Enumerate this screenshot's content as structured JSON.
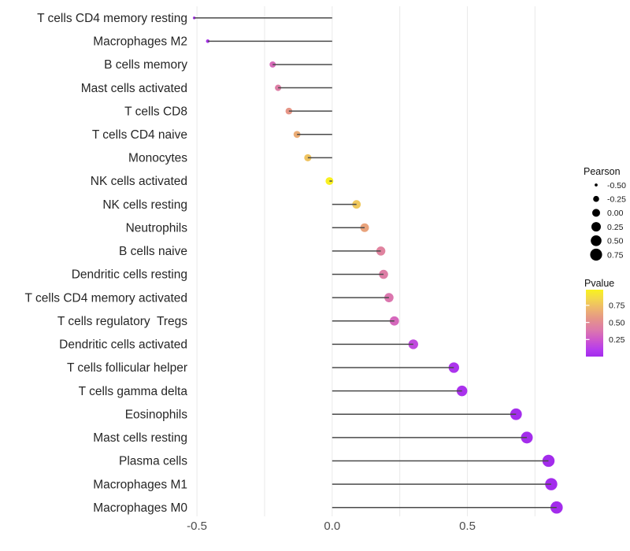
{
  "window": {
    "title": "Immune cell correlation lollipop chart"
  },
  "colors": {
    "background": "#ffffff",
    "gridline": "#ebebeb",
    "stick": "#4a4a4a",
    "axis_text": "#4d4d4d",
    "label_text": "#262626",
    "legend_dot": "#000000"
  },
  "chart_data": {
    "type": "lollipop",
    "title": "",
    "xlabel": "",
    "ylabel": "",
    "grid": "vertical-only",
    "x_axis": {
      "range": [
        -0.63,
        0.95
      ],
      "ticks": [
        -0.5,
        0.0,
        0.5
      ],
      "tick_labels": [
        "-0.5",
        "0.0",
        "0.5"
      ],
      "gridlines": [
        -0.5,
        -0.25,
        0.0,
        0.25,
        0.5,
        0.75
      ]
    },
    "categories": [
      "T cells CD4 memory resting",
      "Macrophages M2",
      "B cells memory",
      "Mast cells activated",
      "T cells CD8",
      "T cells CD4 naive",
      "Monocytes",
      "NK cells activated",
      "NK cells resting",
      "Neutrophils",
      "B cells naive",
      "Dendritic cells resting",
      "T cells CD4 memory activated",
      "T cells regulatory  Tregs",
      "Dendritic cells activated",
      "T cells follicular helper",
      "T cells gamma delta",
      "Eosinophils",
      "Mast cells resting",
      "Plasma cells",
      "Macrophages M1",
      "Macrophages M0"
    ],
    "series": [
      {
        "name": "Pearson",
        "values": [
          -0.51,
          -0.46,
          -0.22,
          -0.2,
          -0.16,
          -0.13,
          -0.09,
          -0.01,
          0.09,
          0.12,
          0.18,
          0.19,
          0.21,
          0.23,
          0.3,
          0.45,
          0.48,
          0.68,
          0.72,
          0.8,
          0.81,
          0.83
        ]
      },
      {
        "name": "Pvalue",
        "values": [
          0.02,
          0.04,
          0.33,
          0.42,
          0.56,
          0.66,
          0.76,
          0.97,
          0.78,
          0.62,
          0.45,
          0.42,
          0.38,
          0.32,
          0.17,
          0.05,
          0.04,
          0.005,
          0.004,
          0.002,
          0.002,
          0.001
        ]
      }
    ],
    "legend_size": {
      "title": "Pearson",
      "entries": [
        {
          "label": "-0.50",
          "value": -0.5
        },
        {
          "label": "-0.25",
          "value": -0.25
        },
        {
          "label": "0.00",
          "value": 0.0
        },
        {
          "label": "0.25",
          "value": 0.25
        },
        {
          "label": "0.50",
          "value": 0.5
        },
        {
          "label": "0.75",
          "value": 0.75
        }
      ]
    },
    "legend_color": {
      "title": "Pvalue",
      "range": [
        0,
        0.98
      ],
      "tick_labels": [
        "0.75",
        "0.50",
        "0.25"
      ],
      "tick_values": [
        0.75,
        0.5,
        0.25
      ],
      "gradient_stops": [
        {
          "p": 0.0,
          "color": "#A32CEC"
        },
        {
          "p": 0.1,
          "color": "#B43BEE"
        },
        {
          "p": 0.25,
          "color": "#CE58CB"
        },
        {
          "p": 0.4,
          "color": "#DD7BAA"
        },
        {
          "p": 0.55,
          "color": "#E59489"
        },
        {
          "p": 0.7,
          "color": "#EDB56E"
        },
        {
          "p": 0.85,
          "color": "#F3D84B"
        },
        {
          "p": 0.98,
          "color": "#F9F21E"
        }
      ]
    }
  }
}
